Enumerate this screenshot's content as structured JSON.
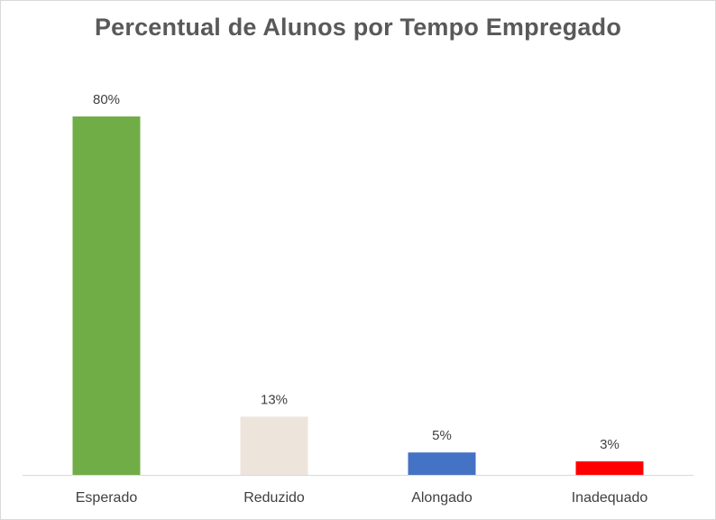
{
  "chart_data": {
    "type": "bar",
    "title": "Percentual de Alunos por Tempo Empregado",
    "categories": [
      "Esperado",
      "Reduzido",
      "Alongado",
      "Inadequado"
    ],
    "values": [
      80,
      13,
      5,
      3
    ],
    "data_labels": [
      "80%",
      "13%",
      "5%",
      "3%"
    ],
    "colors": [
      "#70ad47",
      "#ede5dc",
      "#4472c4",
      "#ff0000"
    ],
    "xlabel": "",
    "ylabel": "",
    "ylim": [
      0,
      80
    ],
    "grid": false,
    "legend": "none"
  }
}
